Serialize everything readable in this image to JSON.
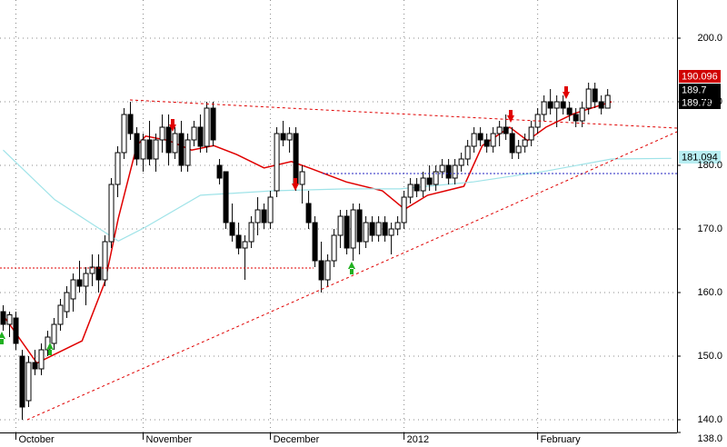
{
  "chart_data": {
    "type": "candlestick",
    "xlim": [
      -0.5,
      105.9
    ],
    "ylim": [
      138,
      206
    ],
    "yticks": [
      {
        "value": 138,
        "label": "138.0"
      },
      {
        "value": 140,
        "label": "140.0"
      },
      {
        "value": 150,
        "label": "150.0"
      },
      {
        "value": 160,
        "label": "160.0"
      },
      {
        "value": 170,
        "label": "170.0"
      },
      {
        "value": 180,
        "label": "180.0"
      },
      {
        "value": 190,
        "label": "190.0"
      },
      {
        "value": 200,
        "label": "200.0"
      }
    ],
    "xticks": [
      {
        "value": 2,
        "label": "October"
      },
      {
        "value": 22,
        "label": "November"
      },
      {
        "value": 42,
        "label": "December"
      },
      {
        "value": 63,
        "label": "2012"
      },
      {
        "value": 84,
        "label": "February"
      }
    ],
    "grid": true,
    "open": [
      157,
      155,
      156,
      150,
      143,
      149,
      148,
      151,
      152,
      155,
      157,
      159,
      162,
      161,
      163,
      164,
      162,
      168,
      177,
      182,
      188,
      185,
      181,
      184,
      181,
      184,
      186,
      182,
      185,
      180,
      184,
      186,
      183,
      189,
      180,
      179,
      171,
      169,
      167,
      168,
      171,
      173,
      171,
      176,
      185,
      184,
      185,
      177,
      174,
      171,
      165,
      162,
      165,
      169,
      172,
      167,
      173,
      168,
      171,
      169,
      171,
      169,
      170,
      171,
      175,
      177,
      176,
      178,
      177,
      179,
      180,
      178,
      180,
      181,
      183,
      185,
      184,
      183,
      185,
      186,
      185,
      182,
      183,
      184,
      186,
      188,
      190,
      189,
      190,
      189,
      188,
      187,
      189,
      192,
      190,
      189
    ],
    "high": [
      158,
      157,
      157,
      151,
      150,
      151,
      152,
      154,
      156,
      159,
      161,
      163,
      165,
      164,
      166,
      166,
      169,
      178,
      183,
      189,
      190,
      186,
      185,
      187,
      185,
      188,
      188,
      186,
      187,
      185,
      187,
      188,
      190,
      190,
      181,
      179,
      174,
      171,
      169,
      172,
      175,
      174,
      176,
      186,
      187,
      186,
      186,
      180,
      176,
      172,
      168,
      166,
      170,
      173,
      173,
      174,
      174,
      172,
      172,
      172,
      172,
      171,
      172,
      176,
      178,
      178,
      179,
      180,
      180,
      181,
      181,
      181,
      182,
      184,
      186,
      186,
      185,
      186,
      187,
      188,
      186,
      184,
      185,
      187,
      189,
      191,
      192,
      191,
      191,
      190,
      189,
      190,
      193,
      193,
      191,
      192
    ],
    "low": [
      154,
      153,
      151,
      140,
      142,
      147,
      147,
      150,
      151,
      154,
      156,
      157,
      160,
      158,
      161,
      160,
      161,
      167,
      175,
      181,
      184,
      180,
      179,
      180,
      179,
      182,
      180,
      181,
      179,
      179,
      183,
      182,
      182,
      183,
      177,
      170,
      168,
      166,
      162,
      167,
      169,
      170,
      170,
      175,
      183,
      182,
      176,
      174,
      170,
      164,
      160,
      161,
      164,
      167,
      166,
      165,
      166,
      167,
      168,
      168,
      168,
      166,
      169,
      170,
      174,
      175,
      175,
      176,
      176,
      178,
      177,
      177,
      179,
      180,
      182,
      183,
      182,
      182,
      183,
      184,
      181,
      181,
      182,
      183,
      185,
      187,
      188,
      186,
      188,
      187,
      186,
      186,
      188,
      189,
      188,
      189
    ],
    "close": [
      155,
      156.5,
      152,
      142,
      149,
      148,
      151,
      153,
      155,
      158,
      160,
      162,
      161,
      163,
      164,
      162,
      168,
      177,
      182,
      188,
      185,
      181,
      184,
      181,
      184,
      186,
      182,
      185,
      180,
      184,
      186,
      183,
      189,
      184,
      178,
      171,
      169,
      167,
      168,
      171,
      173,
      171,
      175,
      185,
      184,
      185,
      177,
      179,
      171,
      165,
      162,
      165,
      169,
      172,
      167,
      173,
      168,
      171,
      169,
      171,
      169,
      170,
      171,
      175,
      177,
      176,
      178,
      177,
      179,
      180,
      178,
      180,
      181,
      183,
      185,
      184,
      183,
      185,
      186,
      185,
      182,
      183,
      184,
      186,
      188,
      190,
      189,
      190,
      189,
      188,
      187,
      189,
      192,
      190,
      189,
      191
    ],
    "series": [
      {
        "color": "#e00000",
        "x": [
          0.3,
          5.3,
          8.1,
          12.4,
          16,
          18.1,
          21,
          22.4,
          26,
          29.6,
          33.1,
          36.7,
          41,
          45.3,
          48.1,
          53.9,
          59.6,
          63.1,
          66.7,
          72.4,
          75.3,
          79.6,
          82.4,
          85.3,
          89.6,
          95.6
        ],
        "values": [
          156,
          148.9,
          150.3,
          152.4,
          161.7,
          171.7,
          183.1,
          184.6,
          183.9,
          182.4,
          183.1,
          181.7,
          179.6,
          180.6,
          179.6,
          177.4,
          176,
          173.1,
          175.3,
          176.7,
          183.1,
          186,
          183.9,
          186,
          188.1,
          190
        ]
      },
      {
        "color": "#9fe3e8",
        "x": [
          0,
          8.1,
          18.1,
          22.4,
          31,
          42.4,
          53.9,
          62.4,
          73.9,
          85.3,
          95.6,
          105
        ],
        "values": [
          182.4,
          174.6,
          168.1,
          170.3,
          175.3,
          176,
          176.3,
          176.3,
          177.4,
          179.1,
          181,
          181.1
        ]
      }
    ],
    "price_labels": [
      "190.096",
      "189.7",
      "189.79",
      "181.094"
    ]
  }
}
